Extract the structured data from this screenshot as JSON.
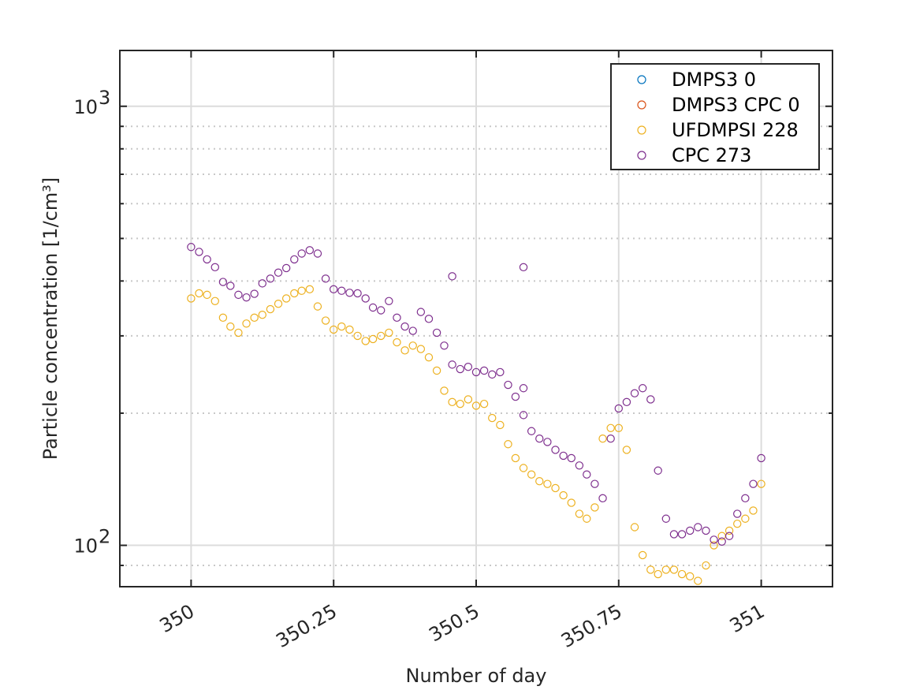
{
  "chart_data": {
    "type": "scatter",
    "title": "",
    "xlabel": "Number of day",
    "ylabel": "Particle concentration [1/cm³]",
    "yscale": "log",
    "xlim": [
      349.875,
      351.125
    ],
    "ylim": [
      80.5,
      1340
    ],
    "x_ticks": [
      350,
      350.25,
      350.5,
      350.75,
      351
    ],
    "x_tick_labels": [
      "350",
      "350.25",
      "350.5",
      "350.75",
      "351"
    ],
    "y_ticks": [
      100,
      1000
    ],
    "y_tick_labels": [
      {
        "base": "10",
        "exp": "2"
      },
      {
        "base": "10",
        "exp": "3"
      }
    ],
    "grid": true,
    "legend_placement": "top-right",
    "series": [
      {
        "name": "DMPS3 0",
        "color": "#0072BD",
        "x": [],
        "y": []
      },
      {
        "name": "DMPS3 CPC 0",
        "color": "#D95319",
        "x": [],
        "y": []
      },
      {
        "name": "UFDMPSI 228",
        "color": "#EDB120",
        "x": [
          350.0,
          350.014,
          350.028,
          350.042,
          350.056,
          350.069,
          350.083,
          350.097,
          350.111,
          350.125,
          350.139,
          350.153,
          350.167,
          350.181,
          350.194,
          350.208,
          350.222,
          350.236,
          350.25,
          350.264,
          350.278,
          350.292,
          350.306,
          350.319,
          350.333,
          350.347,
          350.361,
          350.375,
          350.389,
          350.403,
          350.417,
          350.431,
          350.444,
          350.458,
          350.472,
          350.486,
          350.5,
          350.514,
          350.528,
          350.542,
          350.556,
          350.569,
          350.583,
          350.597,
          350.611,
          350.625,
          350.639,
          350.653,
          350.667,
          350.681,
          350.694,
          350.708,
          350.722,
          350.736,
          350.75,
          350.764,
          350.778,
          350.792,
          350.806,
          350.819,
          350.833,
          350.847,
          350.861,
          350.875,
          350.889,
          350.903,
          350.917,
          350.931,
          350.944,
          350.958,
          350.972,
          350.986,
          351.0
        ],
        "y": [
          365,
          375,
          372,
          360,
          330,
          315,
          305,
          320,
          330,
          335,
          345,
          355,
          365,
          375,
          380,
          383,
          350,
          325,
          310,
          315,
          310,
          300,
          292,
          295,
          300,
          305,
          290,
          278,
          285,
          280,
          268,
          250,
          225,
          212,
          210,
          215,
          208,
          210,
          195,
          188,
          170,
          158,
          150,
          145,
          140,
          138,
          135,
          130,
          125,
          118,
          115,
          122,
          175,
          185,
          185,
          165,
          110,
          95,
          88,
          86,
          88,
          88,
          86,
          85,
          83,
          90,
          100,
          105,
          108,
          112,
          115,
          120,
          138
        ]
      },
      {
        "name": "CPC 273",
        "color": "#7E2F8E",
        "x": [
          350.0,
          350.014,
          350.028,
          350.042,
          350.056,
          350.069,
          350.083,
          350.097,
          350.111,
          350.125,
          350.139,
          350.153,
          350.167,
          350.181,
          350.194,
          350.208,
          350.222,
          350.236,
          350.25,
          350.264,
          350.278,
          350.292,
          350.306,
          350.319,
          350.333,
          350.347,
          350.361,
          350.375,
          350.389,
          350.403,
          350.417,
          350.431,
          350.444,
          350.458,
          350.472,
          350.486,
          350.5,
          350.514,
          350.528,
          350.542,
          350.556,
          350.569,
          350.583,
          350.597,
          350.611,
          350.625,
          350.639,
          350.653,
          350.667,
          350.681,
          350.694,
          350.708,
          350.722,
          350.736,
          350.75,
          350.764,
          350.778,
          350.792,
          350.806,
          350.819,
          350.833,
          350.847,
          350.861,
          350.875,
          350.889,
          350.903,
          350.917,
          350.931,
          350.944,
          350.958,
          350.972,
          350.986,
          351.0
        ],
        "y": [
          478,
          466,
          448,
          430,
          398,
          390,
          372,
          367,
          374,
          395,
          405,
          418,
          428,
          448,
          462,
          470,
          462,
          405,
          383,
          380,
          376,
          375,
          365,
          348,
          343,
          360,
          330,
          315,
          308,
          340,
          328,
          305,
          285,
          258,
          252,
          255,
          248,
          250,
          245,
          248,
          232,
          218,
          198,
          182,
          175,
          172,
          165,
          160,
          158,
          152,
          145,
          138,
          128,
          175,
          205,
          212,
          222,
          228,
          215,
          148,
          115,
          106,
          106,
          108,
          110,
          108,
          103,
          102,
          105,
          118,
          128,
          138,
          158
        ]
      }
    ],
    "outliers": {
      "CPC 273": [
        {
          "x": 350.458,
          "y": 410
        },
        {
          "x": 350.583,
          "y": 430
        },
        {
          "x": 350.583,
          "y": 228
        }
      ]
    }
  }
}
